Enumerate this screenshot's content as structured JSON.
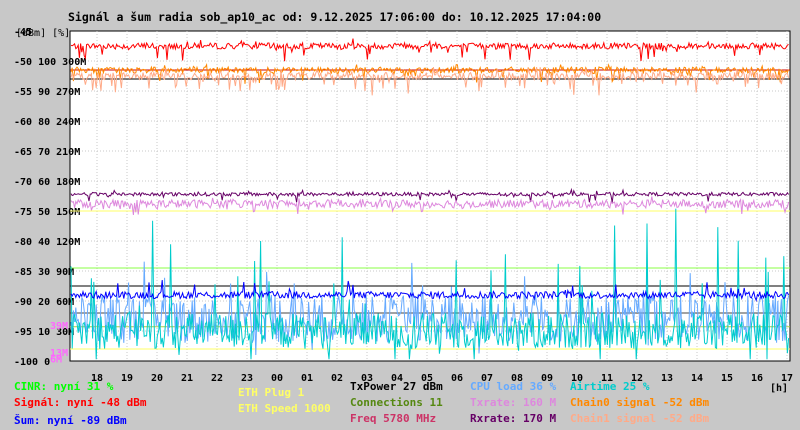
{
  "title": "Signál a šum radia sob_ap10_ac od: 9.12.2025 17:06:00 do: 10.12.2025 17:04:00",
  "unit_label": "[dBm] [%]",
  "legend": [
    {
      "text": "CINR: nyní 31 %",
      "color": "#00ff00"
    },
    {
      "text": "Signál: nyní -48 dBm",
      "color": "#ff0000"
    },
    {
      "text": "Šum: nyní -89 dBm",
      "color": "#0000ff"
    },
    {
      "text": "ETH Plug 1",
      "color": "#ffff66"
    },
    {
      "text": "ETH Speed 1000",
      "color": "#ffff66"
    },
    {
      "text": "TxPower 27 dBm",
      "color": "#000000"
    },
    {
      "text": "Connections 11",
      "color": "#558811"
    },
    {
      "text": "Freq 5780 MHz",
      "color": "#cc3366"
    },
    {
      "text": "CPU load 36 %",
      "color": "#66aaff"
    },
    {
      "text": "Txrate: 160 M",
      "color": "#dd88dd"
    },
    {
      "text": "Rxrate: 170 M",
      "color": "#660066"
    },
    {
      "text": "Airtime 25 %",
      "color": "#00cccc"
    },
    {
      "text": "Chain0 signal -52 dBm",
      "color": "#ff8800"
    },
    {
      "text": "Chain1 signal -52 dBm",
      "color": "#ffaa88"
    }
  ],
  "chart_data": {
    "type": "line",
    "title": "Signál a šum radia sob_ap10_ac od: 9.12.2025 17:06:00 do: 10.12.2025 17:04:00",
    "xlabel": "[h]",
    "x_ticks": [
      "18",
      "19",
      "20",
      "21",
      "22",
      "23",
      "00",
      "01",
      "02",
      "03",
      "04",
      "05",
      "06",
      "07",
      "08",
      "09",
      "10",
      "11",
      "12",
      "13",
      "14",
      "15",
      "16",
      "17"
    ],
    "y_ticks": [
      {
        "dbm": "-45",
        "pct": "",
        "rate": ""
      },
      {
        "dbm": "-50",
        "pct": "100",
        "rate": "300M"
      },
      {
        "dbm": "-55",
        "pct": "90",
        "rate": "270M"
      },
      {
        "dbm": "-60",
        "pct": "80",
        "rate": "240M"
      },
      {
        "dbm": "-65",
        "pct": "70",
        "rate": "210M"
      },
      {
        "dbm": "-70",
        "pct": "60",
        "rate": "180M"
      },
      {
        "dbm": "-75",
        "pct": "50",
        "rate": "150M"
      },
      {
        "dbm": "-80",
        "pct": "40",
        "rate": "120M"
      },
      {
        "dbm": "-85",
        "pct": "30",
        "rate": "90M"
      },
      {
        "dbm": "-90",
        "pct": "20",
        "rate": "60M"
      },
      {
        "dbm": "-95",
        "pct": "10",
        "rate": "30M"
      },
      {
        "dbm": "-100",
        "pct": "0",
        "rate": ""
      }
    ],
    "extra_left_labels": [
      "39M",
      "13M",
      "6M"
    ],
    "ylim_dbm": [
      -100,
      -45
    ],
    "grid": true,
    "series": [
      {
        "name": "Signál",
        "color": "#ff0000",
        "unit": "dBm",
        "current": -48
      },
      {
        "name": "Chain0 signal",
        "color": "#ff8800",
        "unit": "dBm",
        "current": -52
      },
      {
        "name": "Chain1 signal",
        "color": "#ffaa88",
        "unit": "dBm",
        "current": -52
      },
      {
        "name": "Šum",
        "color": "#0000ff",
        "unit": "dBm",
        "current": -89
      },
      {
        "name": "TxPower",
        "color": "#000000",
        "unit": "dBm",
        "current": 27
      },
      {
        "name": "Rxrate",
        "color": "#660066",
        "unit": "M",
        "current": 170
      },
      {
        "name": "Txrate",
        "color": "#dd88dd",
        "unit": "M",
        "current": 160
      },
      {
        "name": "Airtime",
        "color": "#00cccc",
        "unit": "%",
        "current": 25
      },
      {
        "name": "CPU load",
        "color": "#66aaff",
        "unit": "%",
        "current": 36
      },
      {
        "name": "CINR",
        "color": "#00ff00",
        "unit": "%",
        "current": 31
      }
    ]
  }
}
